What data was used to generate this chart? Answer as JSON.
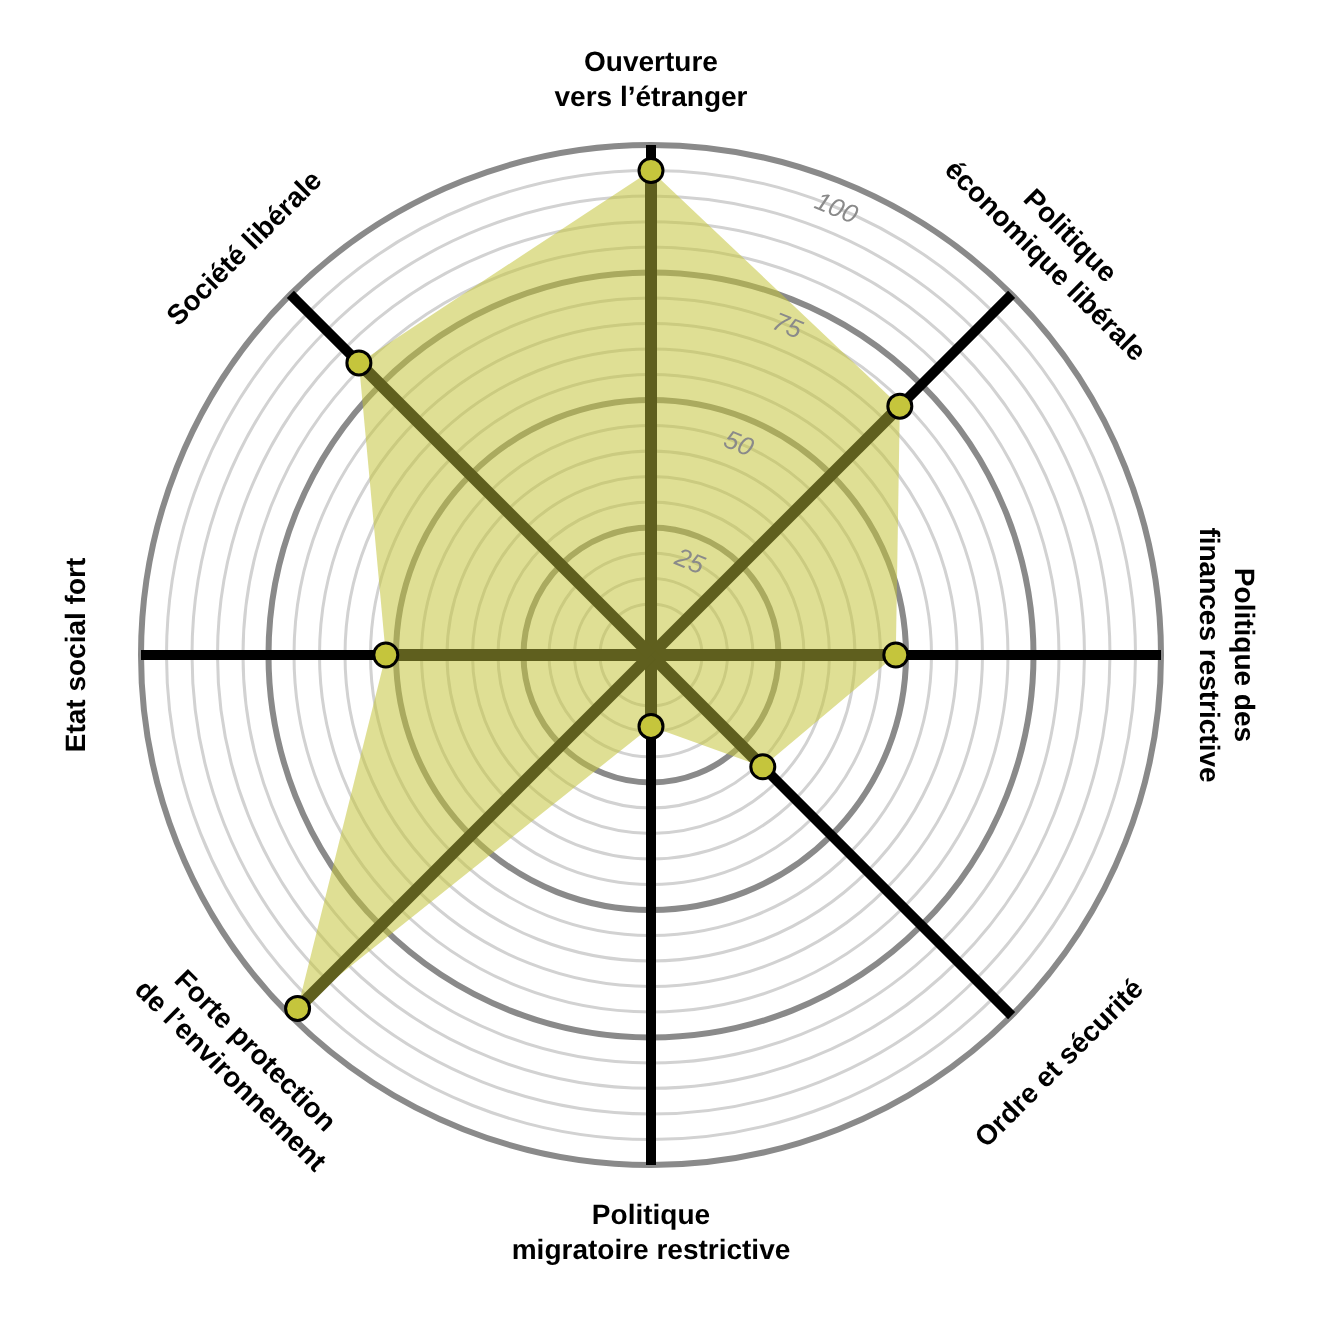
{
  "chart_data": {
    "type": "radar",
    "categories": [
      "Ouverture\nvers l’étranger",
      "Politique\néconomique libérale",
      "Politique des\nfinances restrictive",
      "Ordre et sécurité",
      "Politique\nmigratoire restrictive",
      "Forte protection\nde l’environnement",
      "Etat social fort",
      "Société libérale"
    ],
    "series": [
      {
        "color": "#c5c53c",
        "values": [
          95,
          69,
          48,
          31,
          14,
          98,
          52,
          81
        ]
      }
    ],
    "ylim": [
      0,
      100
    ],
    "yticks": [
      25,
      50,
      75,
      100
    ],
    "grid": true,
    "marker": "circle"
  }
}
